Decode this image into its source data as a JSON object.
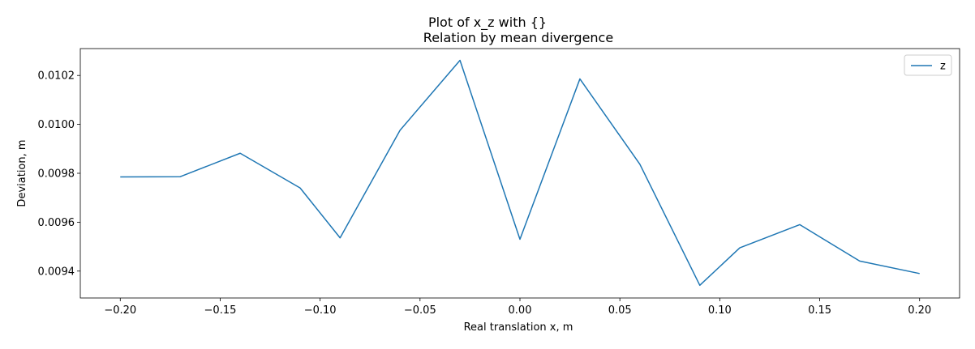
{
  "chart_data": {
    "type": "line",
    "suptitle": "Plot of x_z with {}",
    "title": "Relation by mean divergence",
    "xlabel": "Real translation x, m",
    "ylabel": "Deviation, m",
    "xlim": [
      -0.22,
      0.22
    ],
    "ylim": [
      0.00929,
      0.01031
    ],
    "xticks": [
      -0.2,
      -0.15,
      -0.1,
      -0.05,
      0.0,
      0.05,
      0.1,
      0.15,
      0.2
    ],
    "xtick_labels": [
      "−0.20",
      "−0.15",
      "−0.10",
      "−0.05",
      "0.00",
      "0.05",
      "0.10",
      "0.15",
      "0.20"
    ],
    "yticks": [
      0.0094,
      0.0096,
      0.0098,
      0.01,
      0.0102
    ],
    "ytick_labels": [
      "0.0094",
      "0.0096",
      "0.0098",
      "0.0100",
      "0.0102"
    ],
    "grid": false,
    "legend_position": "top-right",
    "series": [
      {
        "name": "z",
        "color": "#1f77b4",
        "x": [
          -0.2,
          -0.17,
          -0.14,
          -0.11,
          -0.09,
          -0.06,
          -0.03,
          0.0,
          0.03,
          0.06,
          0.09,
          0.11,
          0.14,
          0.17,
          0.2
        ],
        "y": [
          0.009785,
          0.009786,
          0.009882,
          0.00974,
          0.009536,
          0.009976,
          0.010262,
          0.00953,
          0.010186,
          0.009837,
          0.009342,
          0.009495,
          0.00959,
          0.009441,
          0.00939
        ]
      }
    ]
  }
}
